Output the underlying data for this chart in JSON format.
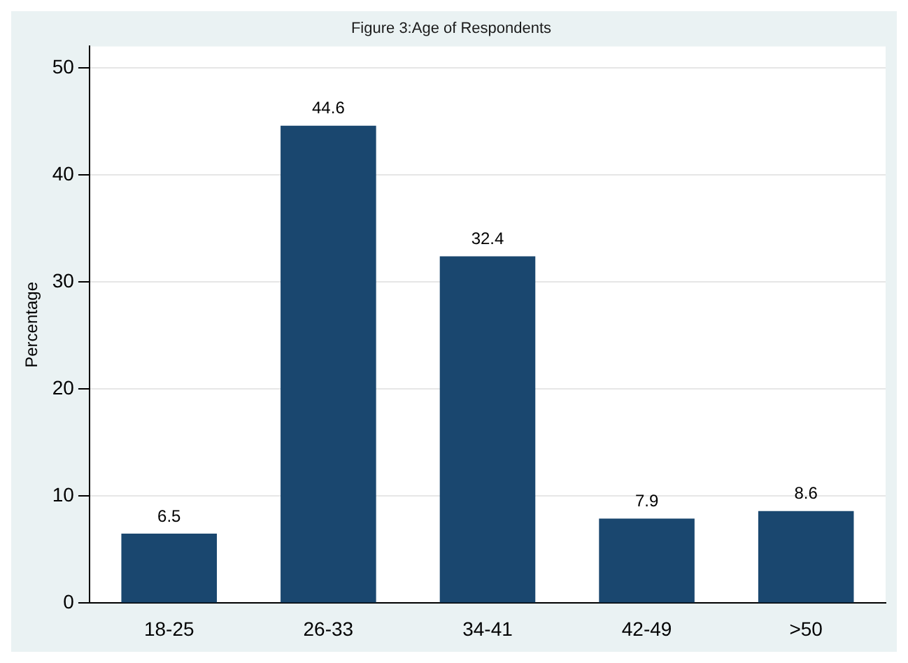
{
  "chart_data": {
    "type": "bar",
    "title": "Figure 3:Age of Respondents",
    "ylabel": "Percentage",
    "categories": [
      "18-25",
      "26-33",
      "34-41",
      "42-49",
      ">50"
    ],
    "values": [
      6.5,
      44.6,
      32.4,
      7.9,
      8.6
    ],
    "color": "#1a476f",
    "ylim": [
      0,
      52
    ],
    "yticks": [
      0,
      10,
      20,
      30,
      40,
      50
    ],
    "grid": "y",
    "data_labels": true,
    "legend": false
  }
}
